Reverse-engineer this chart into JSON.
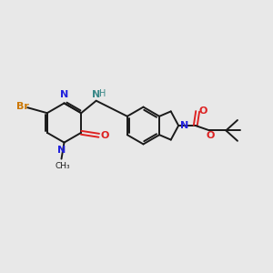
{
  "bg_color": "#e8e8e8",
  "bond_color": "#1a1a1a",
  "N_color": "#2222dd",
  "O_color": "#dd2222",
  "Br_color": "#cc7700",
  "NH_color": "#3a8888",
  "figsize": [
    3.0,
    3.0
  ],
  "dpi": 100,
  "xlim": [
    0,
    10
  ],
  "ylim": [
    0,
    10
  ]
}
